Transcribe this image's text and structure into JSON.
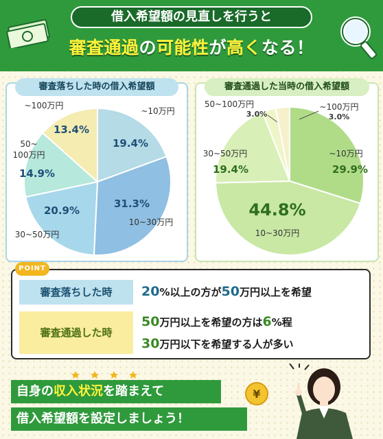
{
  "header": {
    "pill": "借入希望額の見直しを行うと",
    "main_parts": [
      "審査通過",
      "の",
      "可能性",
      "が",
      "高く",
      "なる！"
    ]
  },
  "left_panel": {
    "title": "審査落ちした時の借入希望額"
  },
  "right_panel": {
    "title": "審査通過した当時の借入希望額"
  },
  "chart_data": [
    {
      "type": "pie",
      "title": "審査落ちした時の借入希望額",
      "categories": [
        "~10万円",
        "10~30万円",
        "30~50万円",
        "50~100万円",
        "~100万円"
      ],
      "values": [
        19.4,
        31.3,
        20.9,
        14.9,
        13.4
      ],
      "value_labels": [
        "19.4%",
        "31.3%",
        "20.9%",
        "14.9%",
        "13.4%"
      ],
      "colors": [
        "#b4dbe6",
        "#8fbfe2",
        "#a7d7ea",
        "#b6e8dc",
        "#f4ecb0"
      ]
    },
    {
      "type": "pie",
      "title": "審査通過した当時の借入希望額",
      "categories": [
        "~10万円",
        "10~30万円",
        "30~50万円",
        "50~100万円",
        "~100万円"
      ],
      "values": [
        29.9,
        44.8,
        19.4,
        3.0,
        3.0
      ],
      "value_labels": [
        "29.9%",
        "44.8%",
        "19.4%",
        "3.0%",
        "3.0%"
      ],
      "colors": [
        "#b0dc88",
        "#c8e8a4",
        "#d8efb8",
        "#eef6c8",
        "#f6f0cc"
      ]
    }
  ],
  "point": {
    "badge": "POINT",
    "row1_label": "審査落ちした時",
    "row1_parts": [
      "20",
      "%以上の方が",
      "50",
      "万円以上を希望"
    ],
    "row2_label": "審査通過した時",
    "row2a_parts": [
      "50",
      "万円以上を希望の方は",
      "6",
      "%程"
    ],
    "row2b_parts": [
      "30",
      "万円以下を希望する人が多い"
    ]
  },
  "bottom": {
    "line1_parts": [
      "自身の",
      "収入状況",
      "を踏まえて"
    ],
    "line2": "借入希望額を設定しましょう！"
  },
  "coin_symbol": "¥"
}
